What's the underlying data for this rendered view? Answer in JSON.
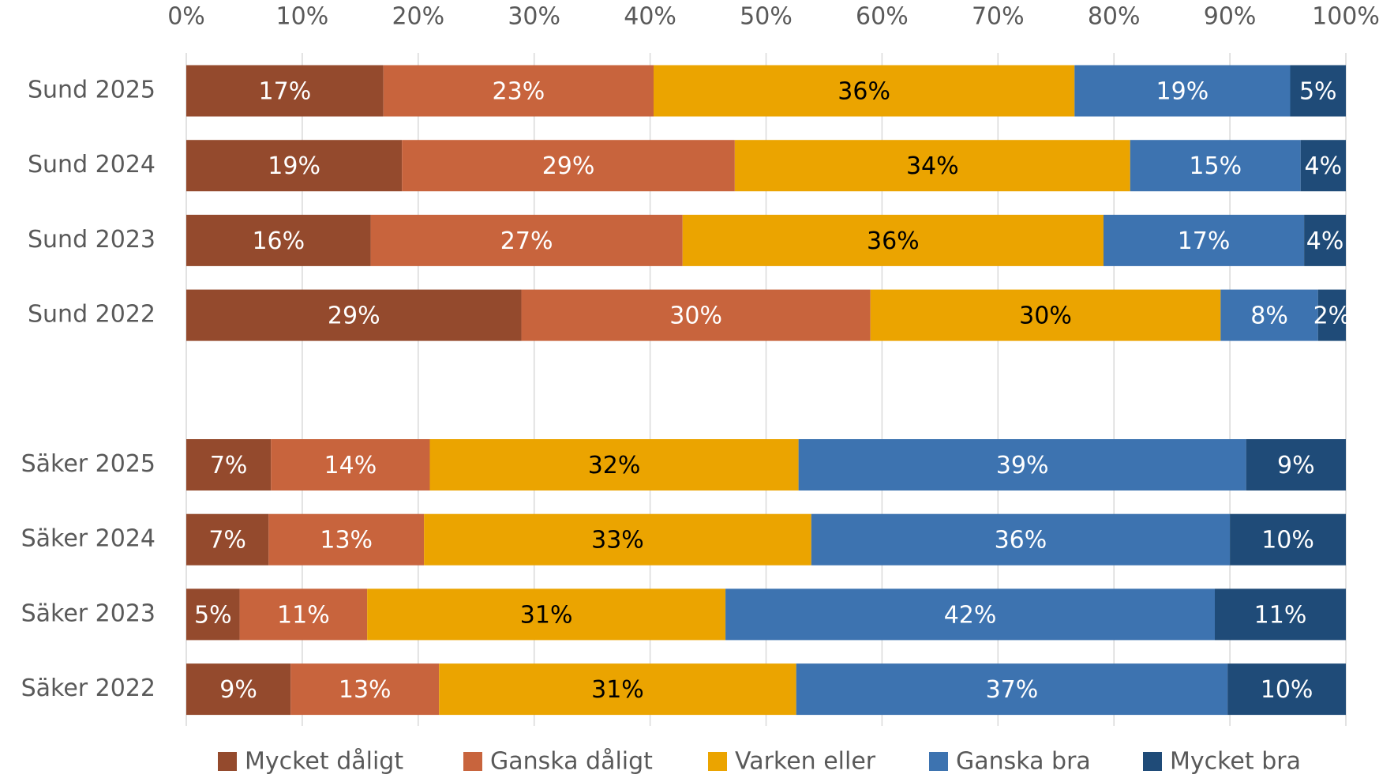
{
  "chart_data": {
    "type": "stacked_barh",
    "categories": [
      "Sund 2025",
      "Sund 2024",
      "Sund 2023",
      "Sund 2022",
      null,
      "Säker 2025",
      "Säker 2024",
      "Säker 2023",
      "Säker 2022"
    ],
    "series": [
      {
        "name": "Mycket dåligt",
        "color": "#944a2d",
        "label_color": "#ffffff",
        "values": [
          17.0,
          18.6,
          15.9,
          28.9,
          null,
          7.3,
          7.1,
          4.6,
          9.0
        ],
        "value_labels": [
          "17%",
          "19%",
          "16%",
          "29%",
          null,
          "7%",
          "7%",
          "5%",
          "9%"
        ]
      },
      {
        "name": "Ganska dåligt",
        "color": "#c8643d",
        "label_color": "#ffffff",
        "values": [
          23.3,
          28.7,
          26.9,
          30.1,
          null,
          13.7,
          13.4,
          11.0,
          12.8
        ],
        "value_labels": [
          "23%",
          "29%",
          "27%",
          "30%",
          null,
          "14%",
          "13%",
          "11%",
          "13%"
        ]
      },
      {
        "name": "Varken eller",
        "color": "#eba400",
        "label_color": "#000000",
        "values": [
          36.3,
          34.1,
          36.3,
          30.2,
          null,
          31.8,
          33.4,
          30.9,
          30.8
        ],
        "value_labels": [
          "36%",
          "34%",
          "36%",
          "30%",
          null,
          "32%",
          "33%",
          "31%",
          "31%"
        ]
      },
      {
        "name": "Ganska bra",
        "color": "#3d73b0",
        "label_color": "#ffffff",
        "values": [
          18.6,
          14.7,
          17.3,
          8.4,
          null,
          38.6,
          36.1,
          42.2,
          37.2
        ],
        "value_labels": [
          "19%",
          "15%",
          "17%",
          "8%",
          null,
          "39%",
          "36%",
          "42%",
          "37%"
        ]
      },
      {
        "name": "Mycket bra",
        "color": "#1f4b78",
        "label_color": "#ffffff",
        "values": [
          4.8,
          3.9,
          3.6,
          2.4,
          null,
          8.6,
          10.0,
          11.3,
          10.2
        ],
        "value_labels": [
          "5%",
          "4%",
          "4%",
          "2%",
          null,
          "9%",
          "10%",
          "11%",
          "10%"
        ]
      }
    ],
    "xlim": [
      0,
      100
    ],
    "xticks": [
      {
        "value": 0,
        "label": "0%"
      },
      {
        "value": 10,
        "label": "10%"
      },
      {
        "value": 20,
        "label": "20%"
      },
      {
        "value": 30,
        "label": "30%"
      },
      {
        "value": 40,
        "label": "40%"
      },
      {
        "value": 50,
        "label": "50%"
      },
      {
        "value": 60,
        "label": "60%"
      },
      {
        "value": 70,
        "label": "70%"
      },
      {
        "value": 80,
        "label": "80%"
      },
      {
        "value": 90,
        "label": "90%"
      },
      {
        "value": 100,
        "label": "100%"
      }
    ],
    "grid": true,
    "legend": "bottom"
  }
}
